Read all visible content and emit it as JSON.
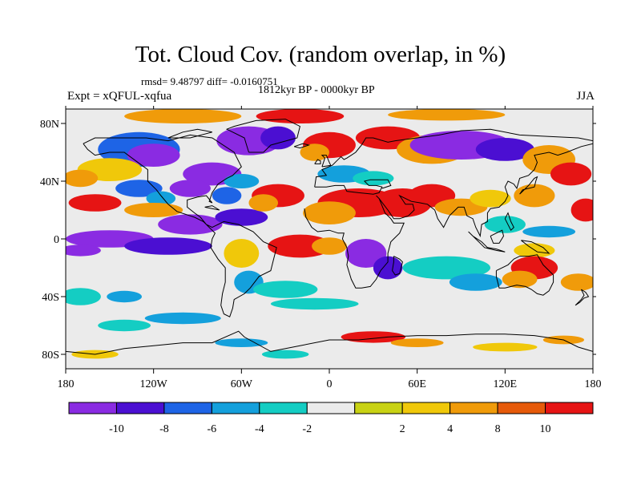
{
  "title": "Tot. Cloud Cov. (random overlap, in %)",
  "stats": "rmsd= 9.48797 diff= -0.0160751",
  "period": "1812kyr BP - 0000kyr BP",
  "experiment": "Expt = xQFUL-xqfua",
  "season": "JJA",
  "map": {
    "projection": "cylindrical-equidistant",
    "lon_ticks": [
      {
        "value": -180,
        "label": "180"
      },
      {
        "value": -120,
        "label": "120W"
      },
      {
        "value": -60,
        "label": "60W"
      },
      {
        "value": 0,
        "label": "0"
      },
      {
        "value": 60,
        "label": "60E"
      },
      {
        "value": 120,
        "label": "120E"
      },
      {
        "value": 180,
        "label": "180"
      }
    ],
    "lat_ticks": [
      {
        "value": 80,
        "label": "80N"
      },
      {
        "value": 40,
        "label": "40N"
      },
      {
        "value": 0,
        "label": "0"
      },
      {
        "value": -40,
        "label": "40S"
      },
      {
        "value": -80,
        "label": "80S"
      }
    ],
    "lon_range": [
      -180,
      180
    ],
    "lat_range": [
      -90,
      90
    ]
  },
  "colorbar": {
    "colors": [
      "#8a2be2",
      "#4b0fd2",
      "#1e64e6",
      "#14a0dc",
      "#14cdc3",
      "#ebebeb",
      "#c8d214",
      "#f0c80a",
      "#f09b0a",
      "#e65a0a",
      "#e61414"
    ],
    "labels": [
      "-10",
      "-8",
      "-6",
      "-4",
      "-2",
      "2",
      "4",
      "8",
      "10"
    ]
  },
  "field_colors": {
    "neutral": "#ebebeb",
    "strong_negative": "#8a2be2",
    "negative": "#4b0fd2",
    "mid_negative": "#1e64e6",
    "weak_negative": "#14a0dc",
    "slight_negative": "#14cdc3",
    "slight_positive": "#c8d214",
    "weak_positive": "#f0c80a",
    "positive": "#f09b0a",
    "strong_positive": "#e61414"
  }
}
